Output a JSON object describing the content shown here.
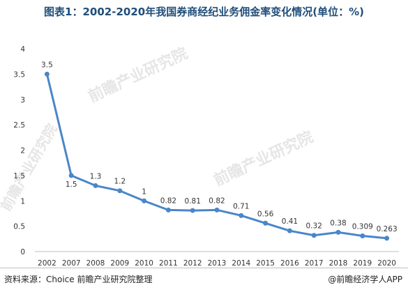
{
  "title": "图表1：2002-2020年我国券商经纪业务佣金率变化情况(单位：%)",
  "source": "资料来源：Choice 前瞻产业研究院整理",
  "credit": "@前瞻经济学人APP",
  "watermark_text": "前瞻产业研究院",
  "colors": {
    "line": "#4a86c8",
    "title": "#1f4e79",
    "axis": "#bfbfbf"
  },
  "chart_data": {
    "type": "line",
    "categories": [
      "2002",
      "2007",
      "2008",
      "2009",
      "2010",
      "2011",
      "2012",
      "2013",
      "2014",
      "2015",
      "2016",
      "2017",
      "2018",
      "2019",
      "2020"
    ],
    "values": [
      3.5,
      1.5,
      1.3,
      1.2,
      1,
      0.82,
      0.81,
      0.82,
      0.71,
      0.56,
      0.41,
      0.32,
      0.38,
      0.309,
      0.263
    ],
    "labels": [
      "3.5",
      "1.5",
      "1.3",
      "1.2",
      "1",
      "0.82",
      "0.81",
      "0.82",
      "0.71",
      "0.56",
      "0.41",
      "0.32",
      "0.38",
      "0.309",
      "0.263"
    ],
    "yticks": [
      "0",
      "0.5",
      "1",
      "1.5",
      "2",
      "2.5",
      "3",
      "3.5",
      "4"
    ],
    "ylim": [
      0,
      4
    ],
    "grid": false
  }
}
